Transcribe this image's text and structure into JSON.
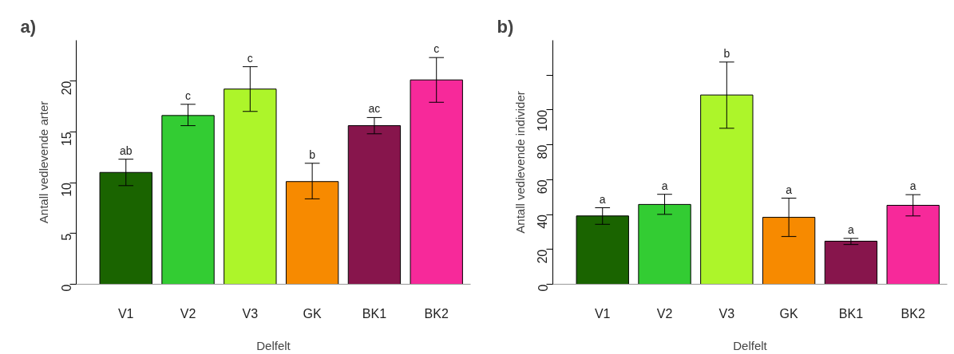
{
  "chart_data": [
    {
      "type": "bar",
      "title": "a)",
      "xlabel": "Delfelt",
      "ylabel": "Antall vedlevende arter",
      "categories": [
        "V1",
        "V2",
        "V3",
        "GK",
        "BK1",
        "BK2"
      ],
      "values": [
        11.0,
        16.6,
        19.2,
        10.1,
        15.6,
        20.1
      ],
      "colors": [
        "#1a6400",
        "#33cc33",
        "#adf52a",
        "#f78a00",
        "#87154c",
        "#f7299a"
      ],
      "errors": [
        [
          9.7,
          12.3
        ],
        [
          15.6,
          17.7
        ],
        [
          17.0,
          21.4
        ],
        [
          8.4,
          11.9
        ],
        [
          14.8,
          16.4
        ],
        [
          17.9,
          22.3
        ]
      ],
      "ylim": [
        0,
        24
      ],
      "yticks": [
        0,
        5,
        10,
        15,
        20
      ],
      "grid": false,
      "annotations": [
        {
          "text": "ab",
          "x": "V1",
          "y": 12.3
        },
        {
          "text": "c",
          "x": "V2",
          "y": 17.7
        },
        {
          "text": "c",
          "x": "V3",
          "y": 21.4
        },
        {
          "text": "b",
          "x": "GK",
          "y": 11.9
        },
        {
          "text": "ac",
          "x": "BK1",
          "y": 16.4
        },
        {
          "text": "c",
          "x": "BK2",
          "y": 22.3
        }
      ]
    },
    {
      "type": "bar",
      "title": "b)",
      "xlabel": "Delfelt",
      "ylabel": "Antall vedlevende individer",
      "categories": [
        "V1",
        "V2",
        "V3",
        "GK",
        "BK1",
        "BK2"
      ],
      "values": [
        39.2,
        45.8,
        108.6,
        38.4,
        24.7,
        45.3
      ],
      "colors": [
        "#1a6400",
        "#33cc33",
        "#adf52a",
        "#f78a00",
        "#87154c",
        "#f7299a"
      ],
      "errors": [
        [
          34.4,
          43.9
        ],
        [
          40.1,
          51.6
        ],
        [
          89.5,
          127.5
        ],
        [
          27.4,
          49.4
        ],
        [
          22.8,
          26.3
        ],
        [
          39.2,
          51.4
        ]
      ],
      "ylim": [
        0,
        140
      ],
      "yticks": [
        0,
        20,
        40,
        60,
        80,
        100,
        {
          "value": 120,
          "label": null
        }
      ],
      "grid": false,
      "annotations": [
        {
          "text": "a",
          "x": "V1",
          "y": 43.9
        },
        {
          "text": "a",
          "x": "V2",
          "y": 51.6
        },
        {
          "text": "b",
          "x": "V3",
          "y": 127.5
        },
        {
          "text": "a",
          "x": "GK",
          "y": 49.4
        },
        {
          "text": "a",
          "x": "BK1",
          "y": 26.3
        },
        {
          "text": "a",
          "x": "BK2",
          "y": 51.4
        }
      ]
    }
  ]
}
